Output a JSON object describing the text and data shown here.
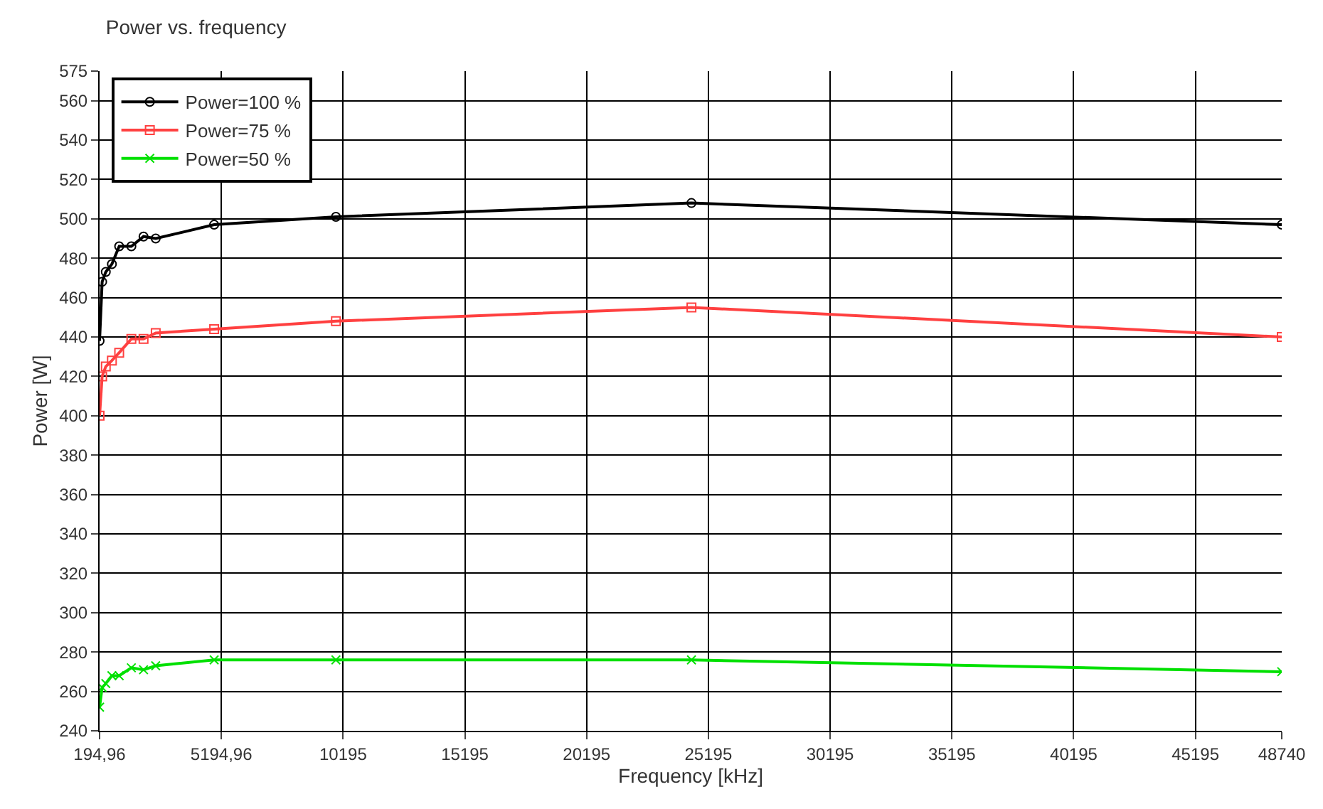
{
  "chart_data": {
    "type": "line",
    "title": "Power vs. frequency",
    "xlabel": "Frequency [kHz]",
    "ylabel": "Power [W]",
    "xlim": [
      194.96,
      48740
    ],
    "xticks": [
      {
        "value": 194.96,
        "label": "194,96"
      },
      {
        "value": 5194.96,
        "label": "5194,96"
      },
      10195,
      15195,
      20195,
      25195,
      30195,
      35195,
      40195,
      45195,
      48740
    ],
    "ylim": [
      240,
      575
    ],
    "yticks": [
      240,
      260,
      280,
      300,
      320,
      340,
      360,
      380,
      400,
      420,
      440,
      460,
      480,
      500,
      520,
      540,
      560,
      575
    ],
    "grid": true,
    "legend": "top left",
    "line_style": "solid",
    "x": [
      194.96,
      300,
      450,
      700,
      1000,
      1500,
      2000,
      2500,
      4900,
      9900,
      24500,
      48740
    ],
    "series": [
      {
        "name": "Power=100 %",
        "color": "#000000",
        "marker": "circle",
        "values": [
          438,
          468,
          473,
          477,
          486,
          486,
          491,
          490,
          497,
          501,
          508,
          497
        ]
      },
      {
        "name": "Power=75 %",
        "color": "#ff4040",
        "marker": "square",
        "values": [
          400,
          420,
          425,
          428,
          432,
          439,
          439,
          442,
          444,
          448,
          455,
          440
        ]
      },
      {
        "name": "Power=50 %",
        "color": "#00e000",
        "marker": "cross",
        "values": [
          252,
          262,
          264,
          268,
          268,
          272,
          271,
          273,
          276,
          276,
          276,
          270
        ]
      }
    ]
  }
}
